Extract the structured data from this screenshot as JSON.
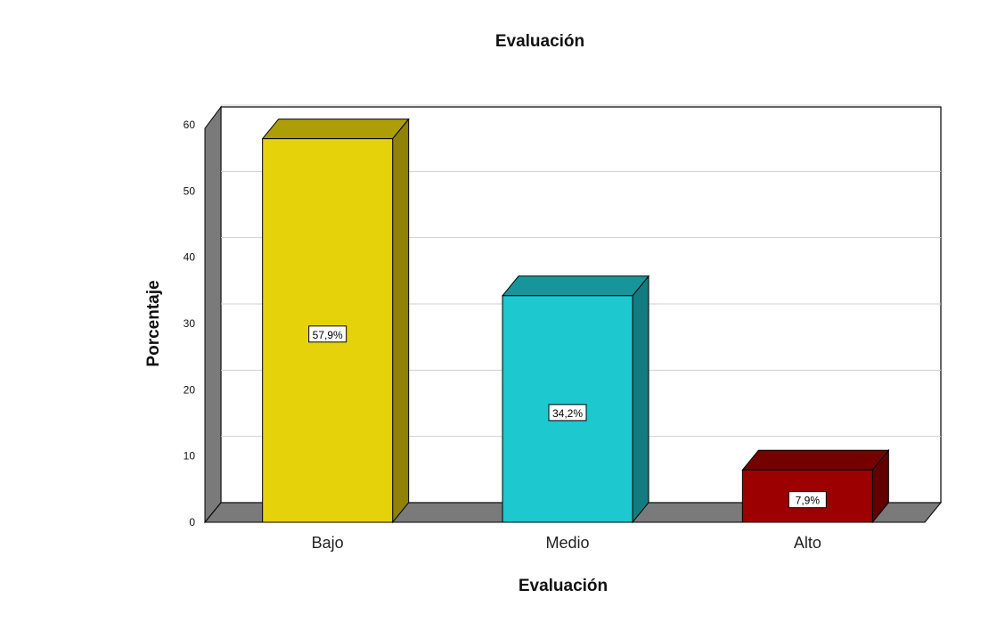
{
  "chart_data": {
    "type": "bar",
    "title": "Evaluación",
    "xlabel": "Evaluación",
    "ylabel": "Porcentaje",
    "categories": [
      "Bajo",
      "Medio",
      "Alto"
    ],
    "values": [
      57.9,
      34.2,
      7.9
    ],
    "data_labels": [
      "57,9%",
      "34,2%",
      "7,9%"
    ],
    "colors": [
      "#e6d20a",
      "#1dc8cf",
      "#9c0000"
    ],
    "ylim": [
      0,
      60
    ],
    "yticks": [
      0,
      10,
      20,
      30,
      40,
      50,
      60
    ],
    "grid": true,
    "style": "3d"
  }
}
